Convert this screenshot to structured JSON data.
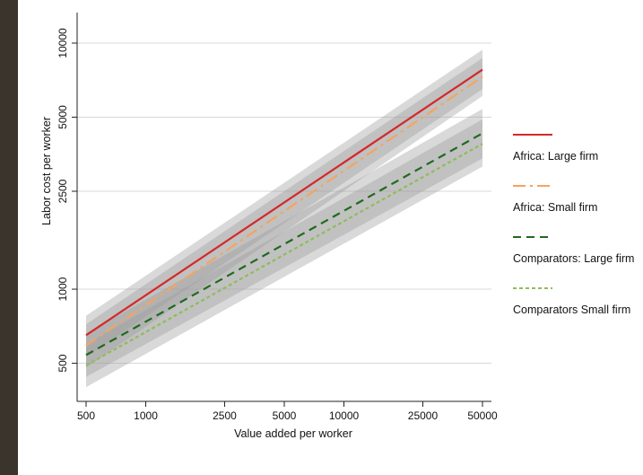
{
  "chart_data": {
    "type": "line",
    "xlabel": "Value added per worker",
    "ylabel": "Labor cost per worker",
    "xscale": "log",
    "yscale": "log",
    "xlim": [
      500,
      50000
    ],
    "ylim": [
      350,
      10000
    ],
    "xticks": [
      500,
      1000,
      2500,
      5000,
      10000,
      25000,
      50000
    ],
    "yticks": [
      500,
      1000,
      2500,
      5000,
      10000
    ],
    "grid": "horizontal",
    "legend_position": "right",
    "series": [
      {
        "name": "Africa: Large firm",
        "color": "#d62728",
        "dash": "solid",
        "x": [
          500,
          50000
        ],
        "y": [
          650,
          7800
        ],
        "ci_low": [
          530,
          6500
        ],
        "ci_high": [
          780,
          9400
        ]
      },
      {
        "name": "Africa: Small firm",
        "color": "#f4a460",
        "dash": "long-dash-dot",
        "x": [
          500,
          50000
        ],
        "y": [
          590,
          7300
        ],
        "ci_low": [
          480,
          6100
        ],
        "ci_high": [
          720,
          8700
        ]
      },
      {
        "name": "Comparators: Large firm",
        "color": "#1e6b1e",
        "dash": "dash",
        "x": [
          500,
          50000
        ],
        "y": [
          540,
          4300
        ],
        "ci_low": [
          440,
          3400
        ],
        "ci_high": [
          660,
          5400
        ]
      },
      {
        "name": "Comparators Small firm",
        "color": "#8fbc5a",
        "dash": "short-dash",
        "x": [
          500,
          50000
        ],
        "y": [
          490,
          3900
        ],
        "ci_low": [
          400,
          3150
        ],
        "ci_high": [
          600,
          4900
        ]
      }
    ]
  }
}
